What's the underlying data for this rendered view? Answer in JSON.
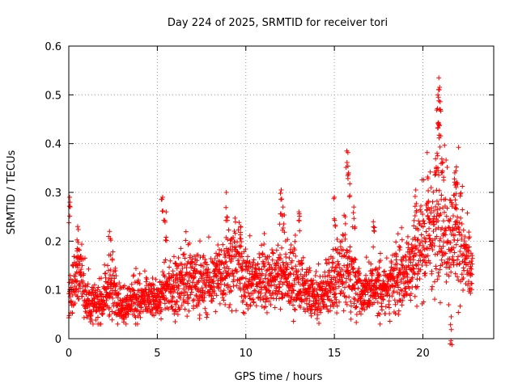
{
  "chart_data": {
    "type": "scatter",
    "title": "Day 224 of 2025, SRMTID for receiver tori",
    "xlabel": "GPS time / hours",
    "ylabel": "SRMTID / TECUs",
    "xlim": [
      0,
      24
    ],
    "ylim": [
      0,
      0.6
    ],
    "xticks": [
      0,
      5,
      10,
      15,
      20
    ],
    "xtick_labels": [
      "0",
      "5",
      "10",
      "15",
      "20"
    ],
    "yticks": [
      0,
      0.1,
      0.2,
      0.3,
      0.4,
      0.5,
      0.6
    ],
    "ytick_labels": [
      "0",
      "0.1",
      "0.2",
      "0.3",
      "0.4",
      "0.5",
      "0.6"
    ],
    "grid": true,
    "marker": "plus",
    "series": [
      {
        "name": "SRMTID",
        "color": "#ff0000",
        "x_range": [
          0.0,
          22.8
        ],
        "baseline": [
          [
            0,
            0.08
          ],
          [
            0.3,
            0.12
          ],
          [
            0.6,
            0.14
          ],
          [
            1,
            0.08
          ],
          [
            1.5,
            0.07
          ],
          [
            2,
            0.08
          ],
          [
            2.5,
            0.11
          ],
          [
            3,
            0.06
          ],
          [
            3.5,
            0.08
          ],
          [
            4,
            0.08
          ],
          [
            4.5,
            0.08
          ],
          [
            5,
            0.08
          ],
          [
            5.5,
            0.1
          ],
          [
            6,
            0.11
          ],
          [
            7,
            0.12
          ],
          [
            8,
            0.11
          ],
          [
            8.8,
            0.14
          ],
          [
            9.5,
            0.16
          ],
          [
            10,
            0.12
          ],
          [
            11,
            0.12
          ],
          [
            12,
            0.13
          ],
          [
            12.5,
            0.12
          ],
          [
            13,
            0.11
          ],
          [
            14,
            0.08
          ],
          [
            14.5,
            0.1
          ],
          [
            15,
            0.12
          ],
          [
            15.5,
            0.15
          ],
          [
            16,
            0.13
          ],
          [
            16.5,
            0.09
          ],
          [
            17,
            0.1
          ],
          [
            17.5,
            0.11
          ],
          [
            18,
            0.1
          ],
          [
            18.5,
            0.12
          ],
          [
            19,
            0.13
          ],
          [
            19.5,
            0.17
          ],
          [
            20,
            0.2
          ],
          [
            20.5,
            0.21
          ],
          [
            21,
            0.25
          ],
          [
            21.5,
            0.2
          ],
          [
            22,
            0.22
          ],
          [
            22.5,
            0.15
          ],
          [
            22.8,
            0.12
          ]
        ],
        "highlights": [
          {
            "x": 0.05,
            "y": 0.29
          },
          {
            "x": 0.5,
            "y": 0.23
          },
          {
            "x": 2.3,
            "y": 0.22
          },
          {
            "x": 5.3,
            "y": 0.29
          },
          {
            "x": 5.5,
            "y": 0.26
          },
          {
            "x": 8.9,
            "y": 0.3
          },
          {
            "x": 9.7,
            "y": 0.23
          },
          {
            "x": 12.0,
            "y": 0.305
          },
          {
            "x": 12.1,
            "y": 0.27
          },
          {
            "x": 13.0,
            "y": 0.26
          },
          {
            "x": 15.0,
            "y": 0.29
          },
          {
            "x": 15.7,
            "y": 0.385
          },
          {
            "x": 15.8,
            "y": 0.34
          },
          {
            "x": 16.1,
            "y": 0.27
          },
          {
            "x": 17.2,
            "y": 0.24
          },
          {
            "x": 19.6,
            "y": 0.305
          },
          {
            "x": 20.3,
            "y": 0.28
          },
          {
            "x": 20.9,
            "y": 0.535
          },
          {
            "x": 20.85,
            "y": 0.5
          },
          {
            "x": 20.95,
            "y": 0.47
          },
          {
            "x": 20.9,
            "y": 0.44
          },
          {
            "x": 20.8,
            "y": 0.38
          },
          {
            "x": 21.1,
            "y": 0.36
          },
          {
            "x": 21.8,
            "y": 0.34
          },
          {
            "x": 21.9,
            "y": 0.32
          },
          {
            "x": 21.6,
            "y": 0.045
          }
        ]
      }
    ]
  }
}
